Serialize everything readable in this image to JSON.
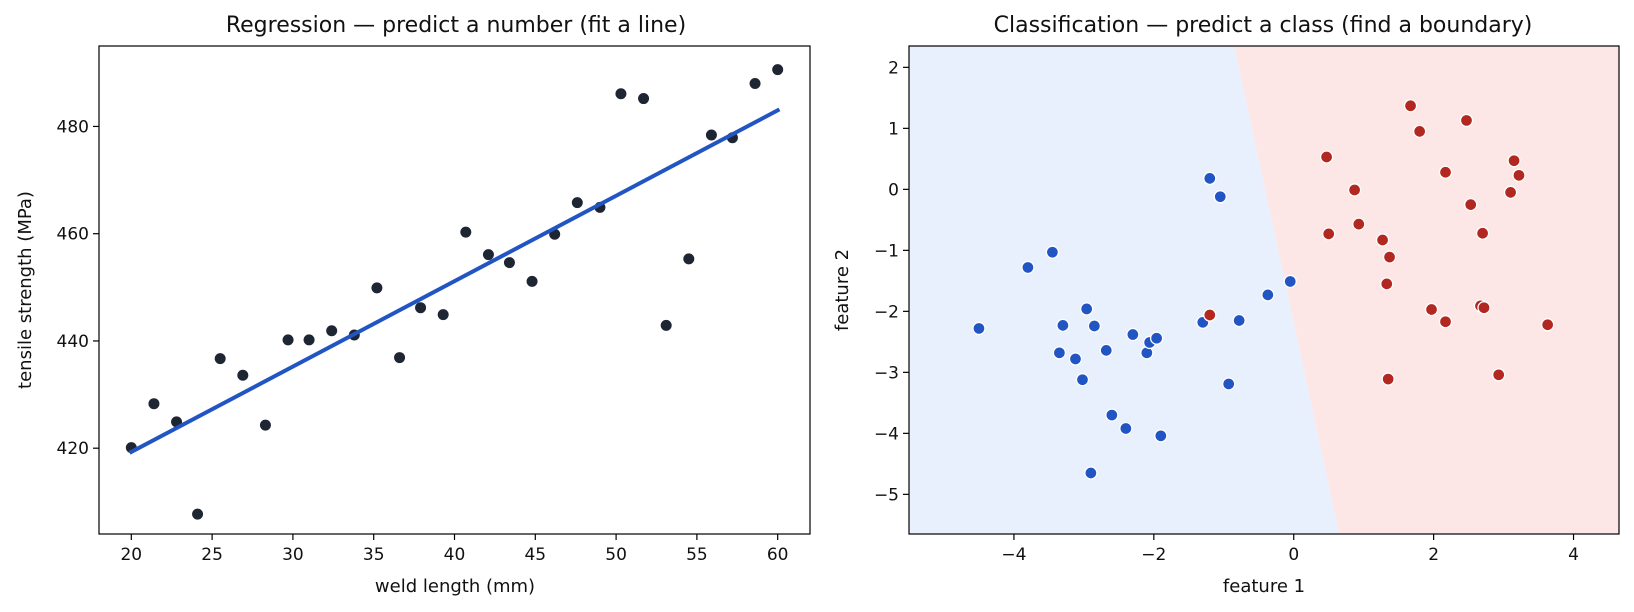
{
  "colors": {
    "point_dark": "#1f2633",
    "fit_line": "#2255c4",
    "class_blue": "#2255c4",
    "class_red": "#b2271f",
    "region_blue": "#e8effd",
    "region_red": "#fde7e6",
    "axis": "#000000"
  },
  "chart_data": [
    {
      "type": "scatter",
      "title": "Regression — predict a number (fit a line)",
      "xlabel": "weld length (mm)",
      "ylabel": "tensile strength (MPa)",
      "xlim": [
        18,
        62
      ],
      "ylim": [
        404,
        495
      ],
      "xticks": [
        20,
        25,
        30,
        35,
        40,
        45,
        50,
        55,
        60
      ],
      "yticks": [
        420,
        440,
        460,
        480
      ],
      "grid": false,
      "points": [
        {
          "x": 20.0,
          "y": 420.1
        },
        {
          "x": 21.4,
          "y": 428.3
        },
        {
          "x": 22.8,
          "y": 424.9
        },
        {
          "x": 24.1,
          "y": 407.7
        },
        {
          "x": 25.5,
          "y": 436.7
        },
        {
          "x": 26.9,
          "y": 433.6
        },
        {
          "x": 28.3,
          "y": 424.3
        },
        {
          "x": 29.7,
          "y": 440.2
        },
        {
          "x": 31.0,
          "y": 440.2
        },
        {
          "x": 32.4,
          "y": 441.9
        },
        {
          "x": 33.8,
          "y": 441.1
        },
        {
          "x": 35.2,
          "y": 449.9
        },
        {
          "x": 36.6,
          "y": 436.9
        },
        {
          "x": 37.9,
          "y": 446.2
        },
        {
          "x": 39.3,
          "y": 444.9
        },
        {
          "x": 40.7,
          "y": 460.3
        },
        {
          "x": 42.1,
          "y": 456.1
        },
        {
          "x": 43.4,
          "y": 454.6
        },
        {
          "x": 44.8,
          "y": 451.1
        },
        {
          "x": 46.2,
          "y": 459.9
        },
        {
          "x": 47.6,
          "y": 465.8
        },
        {
          "x": 49.0,
          "y": 464.9
        },
        {
          "x": 50.3,
          "y": 486.1
        },
        {
          "x": 51.7,
          "y": 485.2
        },
        {
          "x": 53.1,
          "y": 442.9
        },
        {
          "x": 54.5,
          "y": 455.3
        },
        {
          "x": 55.9,
          "y": 478.4
        },
        {
          "x": 57.2,
          "y": 477.9
        },
        {
          "x": 58.6,
          "y": 488.0
        },
        {
          "x": 60.0,
          "y": 490.6
        }
      ],
      "fit_line": {
        "x": [
          20,
          60
        ],
        "y": [
          419.3,
          483.0
        ]
      }
    },
    {
      "type": "scatter",
      "title": "Classification — predict a class (find a boundary)",
      "xlabel": "feature 1",
      "ylabel": "feature 2",
      "xlim": [
        -5.5,
        4.65
      ],
      "ylim": [
        -5.65,
        2.35
      ],
      "xticks": [
        -4,
        -2,
        0,
        2,
        4
      ],
      "xtick_labels": [
        "−4",
        "−2",
        "0",
        "2",
        "4"
      ],
      "yticks": [
        2,
        1,
        0,
        -1,
        -2,
        -3,
        -4,
        -5
      ],
      "ytick_labels": [
        "2",
        "1",
        "0",
        "−1",
        "−2",
        "−3",
        "−4",
        "−5"
      ],
      "grid": false,
      "decision_boundary": {
        "x_at_top": -0.85,
        "x_at_bottom": 0.65
      },
      "series": [
        {
          "points": [
            {
              "x": -4.5,
              "y": -2.28
            },
            {
              "x": -3.8,
              "y": -1.28
            },
            {
              "x": -3.45,
              "y": -1.03
            },
            {
              "x": -3.35,
              "y": -2.68
            },
            {
              "x": -3.3,
              "y": -2.23
            },
            {
              "x": -3.12,
              "y": -2.78
            },
            {
              "x": -3.02,
              "y": -3.12
            },
            {
              "x": -2.96,
              "y": -1.96
            },
            {
              "x": -2.9,
              "y": -4.65
            },
            {
              "x": -2.85,
              "y": -2.24
            },
            {
              "x": -2.68,
              "y": -2.64
            },
            {
              "x": -2.6,
              "y": -3.7
            },
            {
              "x": -2.4,
              "y": -3.92
            },
            {
              "x": -2.3,
              "y": -2.38
            },
            {
              "x": -2.1,
              "y": -2.68
            },
            {
              "x": -2.06,
              "y": -2.51
            },
            {
              "x": -1.96,
              "y": -2.44
            },
            {
              "x": -1.9,
              "y": -4.04
            },
            {
              "x": -1.3,
              "y": -2.18
            },
            {
              "x": -1.2,
              "y": 0.18
            },
            {
              "x": -1.05,
              "y": -0.12
            },
            {
              "x": -0.93,
              "y": -3.19
            },
            {
              "x": -0.78,
              "y": -2.15
            },
            {
              "x": -0.37,
              "y": -1.73
            },
            {
              "x": -0.05,
              "y": -1.51
            }
          ]
        },
        {
          "points": [
            {
              "x": -1.2,
              "y": -2.06
            },
            {
              "x": 0.47,
              "y": 0.53
            },
            {
              "x": 0.5,
              "y": -0.73
            },
            {
              "x": 0.87,
              "y": -0.01
            },
            {
              "x": 0.93,
              "y": -0.57
            },
            {
              "x": 1.27,
              "y": -0.83
            },
            {
              "x": 1.33,
              "y": -1.55
            },
            {
              "x": 1.35,
              "y": -3.11
            },
            {
              "x": 1.37,
              "y": -1.11
            },
            {
              "x": 1.67,
              "y": 1.37
            },
            {
              "x": 1.8,
              "y": 0.95
            },
            {
              "x": 1.97,
              "y": -1.97
            },
            {
              "x": 2.17,
              "y": -2.17
            },
            {
              "x": 2.17,
              "y": 0.28
            },
            {
              "x": 2.47,
              "y": 1.13
            },
            {
              "x": 2.53,
              "y": -0.25
            },
            {
              "x": 2.67,
              "y": -1.91
            },
            {
              "x": 2.7,
              "y": -0.72
            },
            {
              "x": 2.72,
              "y": -1.94
            },
            {
              "x": 2.93,
              "y": -3.04
            },
            {
              "x": 3.1,
              "y": -0.05
            },
            {
              "x": 3.15,
              "y": 0.47
            },
            {
              "x": 3.22,
              "y": 0.23
            },
            {
              "x": 3.63,
              "y": -2.22
            }
          ]
        }
      ]
    }
  ]
}
